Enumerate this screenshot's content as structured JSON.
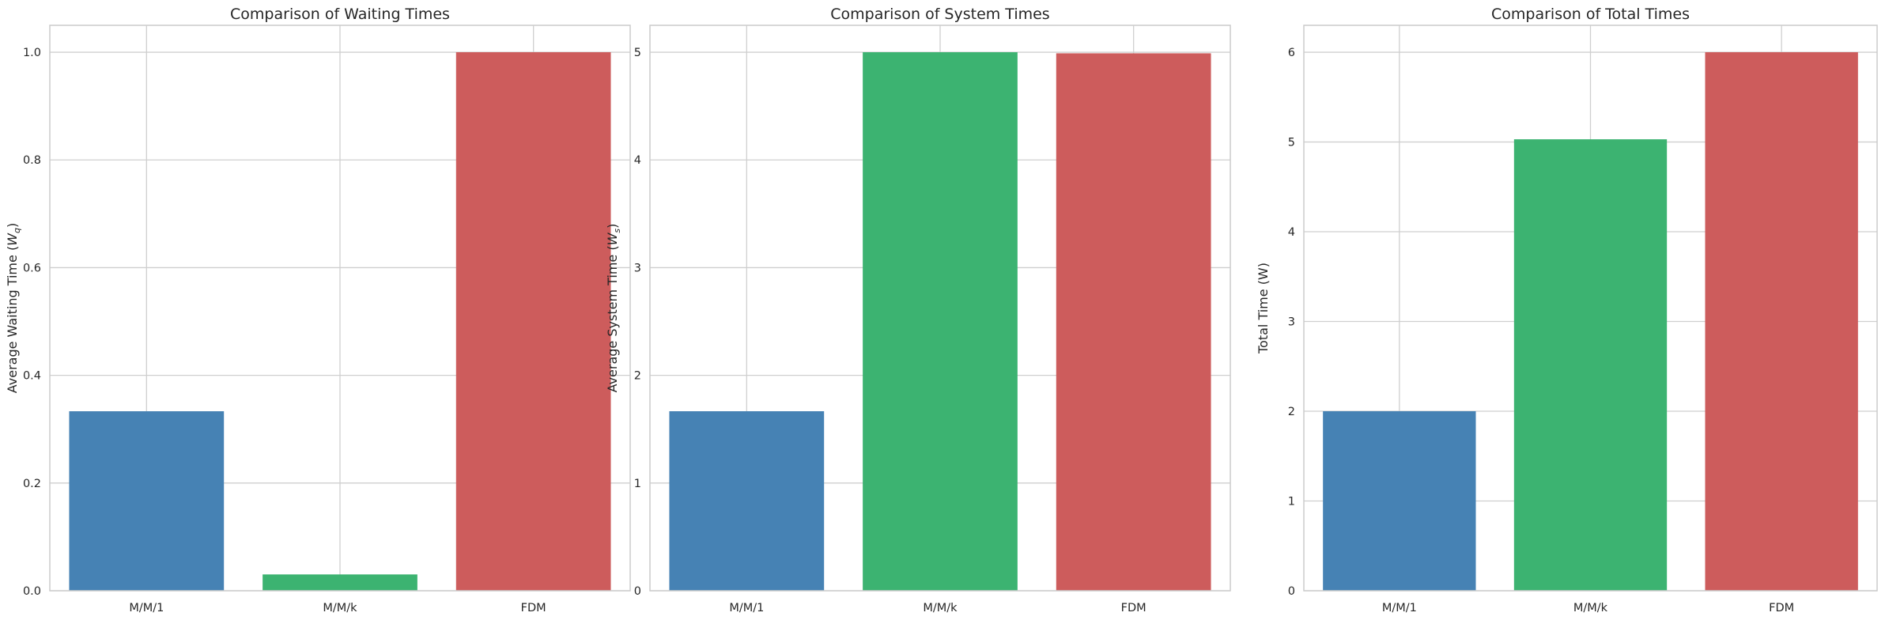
{
  "chart_data": [
    {
      "type": "bar",
      "title": "Comparison of Waiting Times",
      "xlabel": "",
      "ylabel": "Average Waiting Time (W_q)",
      "ylabel_main": "Average Waiting Time (",
      "ylabel_sym": "W",
      "ylabel_sub": "q",
      "ylabel_close": ")",
      "categories": [
        "M/M/1",
        "M/M/k",
        "FDM"
      ],
      "values": [
        0.3333,
        0.0303,
        1.0
      ],
      "colors": [
        "#4682b4",
        "#3cb371",
        "#cd5c5c"
      ],
      "ylim": [
        0,
        1.05
      ],
      "yticks": [
        0.0,
        0.2,
        0.4,
        0.6,
        0.8,
        1.0
      ],
      "ytick_labels": [
        "0.0",
        "0.2",
        "0.4",
        "0.6",
        "0.8",
        "1.0"
      ],
      "grid": true
    },
    {
      "type": "bar",
      "title": "Comparison of System Times",
      "xlabel": "",
      "ylabel": "Average System Time (W_s)",
      "ylabel_main": "Average System Time (",
      "ylabel_sym": "W",
      "ylabel_sub": "s",
      "ylabel_close": ")",
      "categories": [
        "M/M/1",
        "M/M/k",
        "FDM"
      ],
      "values": [
        1.6667,
        5.0,
        4.99
      ],
      "colors": [
        "#4682b4",
        "#3cb371",
        "#cd5c5c"
      ],
      "ylim": [
        0,
        5.25
      ],
      "yticks": [
        0,
        1,
        2,
        3,
        4,
        5
      ],
      "ytick_labels": [
        "0",
        "1",
        "2",
        "3",
        "4",
        "5"
      ],
      "grid": true
    },
    {
      "type": "bar",
      "title": "Comparison of Total Times",
      "xlabel": "",
      "ylabel": "Total Time (W)",
      "ylabel_main": "Total Time (W)",
      "ylabel_sym": "",
      "ylabel_sub": "",
      "ylabel_close": "",
      "categories": [
        "M/M/1",
        "M/M/k",
        "FDM"
      ],
      "values": [
        2.0,
        5.03,
        6.0
      ],
      "colors": [
        "#4682b4",
        "#3cb371",
        "#cd5c5c"
      ],
      "ylim": [
        0,
        6.3
      ],
      "yticks": [
        0,
        1,
        2,
        3,
        4,
        5,
        6
      ],
      "ytick_labels": [
        "0",
        "1",
        "2",
        "3",
        "4",
        "5",
        "6"
      ],
      "grid": true
    }
  ]
}
